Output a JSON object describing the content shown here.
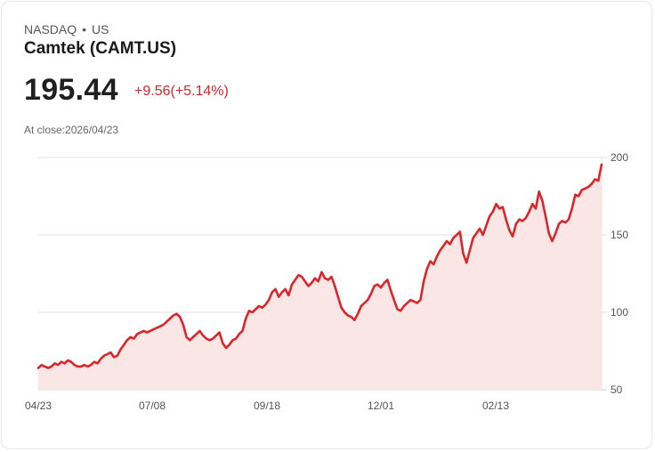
{
  "header": {
    "exchange": "NASDAQ",
    "separator": "•",
    "region": "US",
    "title": "Camtek (CAMT.US)",
    "price": "195.44",
    "change": "+9.56(+5.14%)",
    "close_label": "At close:2026/04/23"
  },
  "colors": {
    "line": "#d9262b",
    "fill": "#fbe6e6",
    "grid": "#e2e2e2",
    "text": "#555555",
    "change": "#d9262b"
  },
  "chart_data": {
    "type": "area",
    "title": "Camtek (CAMT.US)",
    "xlabel": "",
    "ylabel": "",
    "ylim": [
      50,
      200
    ],
    "y_ticks": [
      200,
      150,
      100,
      50
    ],
    "x_ticks": [
      "04/23",
      "07/08",
      "09/18",
      "12/01",
      "02/13"
    ],
    "grid": true,
    "y_axis_position": "right",
    "values": [
      64,
      66,
      65,
      64,
      65,
      67,
      66,
      68,
      67,
      69,
      68,
      66,
      65,
      65,
      66,
      65,
      66,
      68,
      67,
      70,
      72,
      73,
      74,
      71,
      72,
      76,
      79,
      82,
      84,
      83,
      86,
      87,
      88,
      87,
      88,
      89,
      90,
      91,
      92,
      94,
      96,
      98,
      99,
      97,
      92,
      84,
      82,
      84,
      86,
      88,
      85,
      83,
      82,
      83,
      85,
      87,
      80,
      77,
      79,
      82,
      83,
      86,
      88,
      96,
      101,
      100,
      102,
      104,
      103,
      105,
      108,
      113,
      115,
      110,
      113,
      115,
      111,
      118,
      121,
      124,
      123,
      120,
      117,
      119,
      122,
      120,
      126,
      122,
      121,
      123,
      117,
      110,
      103,
      100,
      98,
      97,
      95,
      99,
      104,
      106,
      108,
      112,
      117,
      118,
      116,
      119,
      121,
      114,
      108,
      102,
      101,
      104,
      106,
      108,
      107,
      106,
      108,
      120,
      128,
      133,
      131,
      136,
      140,
      143,
      146,
      144,
      148,
      150,
      152,
      138,
      132,
      140,
      148,
      151,
      154,
      150,
      156,
      162,
      165,
      170,
      167,
      168,
      160,
      153,
      149,
      157,
      160,
      159,
      161,
      165,
      170,
      167,
      178,
      172,
      162,
      151,
      146,
      151,
      157,
      159,
      158,
      160,
      167,
      176,
      175,
      179,
      180,
      181,
      183,
      186,
      185,
      195.44
    ]
  }
}
